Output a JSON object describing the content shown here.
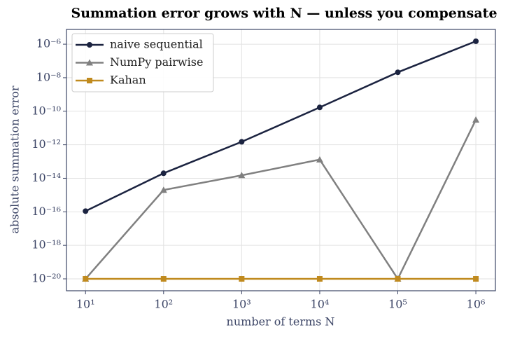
{
  "chart_data": {
    "type": "line",
    "title": "Summation error grows with N — unless you compensate",
    "xlabel": "number of terms N",
    "ylabel": "absolute summation error",
    "x": [
      10,
      100,
      1000,
      10000,
      100000,
      1000000
    ],
    "series": [
      {
        "name": "naive sequential",
        "color": "#1b2340",
        "marker": "circle",
        "values": [
          1.1e-16,
          2e-14,
          1.5e-12,
          1.7e-10,
          2.1e-08,
          1.5e-06
        ]
      },
      {
        "name": "NumPy pairwise",
        "color": "#808080",
        "marker": "triangle",
        "values": [
          1e-20,
          2e-15,
          1.5e-14,
          1.3e-13,
          1e-20,
          3.1e-11
        ]
      },
      {
        "name": "Kahan",
        "color": "#c08a1e",
        "marker": "square",
        "values": [
          1e-20,
          1e-20,
          1e-20,
          1e-20,
          1e-20,
          1e-20
        ]
      }
    ],
    "xscale": "log",
    "yscale": "log",
    "xlim": [
      5.7,
      1780000
    ],
    "ylim": [
      1.95e-21,
      7.6e-06
    ],
    "xticks": [
      {
        "value": 10,
        "label": "10¹"
      },
      {
        "value": 100,
        "label": "10²"
      },
      {
        "value": 1000,
        "label": "10³"
      },
      {
        "value": 10000,
        "label": "10⁴"
      },
      {
        "value": 100000,
        "label": "10⁵"
      },
      {
        "value": 1000000,
        "label": "10⁶"
      }
    ],
    "yticks": [
      {
        "value": 1e-20,
        "label": "10⁻²⁰"
      },
      {
        "value": 1e-18,
        "label": "10⁻¹⁸"
      },
      {
        "value": 1e-16,
        "label": "10⁻¹⁶"
      },
      {
        "value": 1e-14,
        "label": "10⁻¹⁴"
      },
      {
        "value": 1e-12,
        "label": "10⁻¹²"
      },
      {
        "value": 1e-10,
        "label": "10⁻¹⁰"
      },
      {
        "value": 1e-08,
        "label": "10⁻⁸"
      },
      {
        "value": 1e-06,
        "label": "10⁻⁶"
      }
    ],
    "grid": true,
    "legend": "upper left"
  }
}
